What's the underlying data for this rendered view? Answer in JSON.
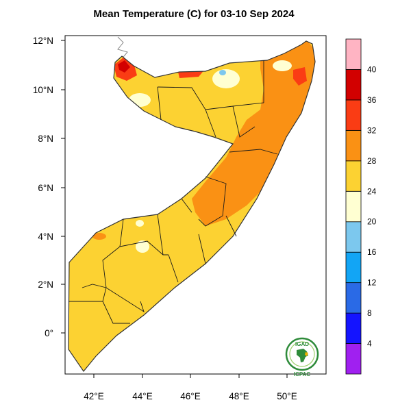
{
  "title": "Mean Temperature (C) for 03-10 Sep 2024",
  "map": {
    "lon_range": [
      41,
      51.5
    ],
    "lat_range": [
      -1.5,
      12.2
    ],
    "lon_ticks": [
      "42°E",
      "44°E",
      "46°E",
      "48°E",
      "50°E"
    ],
    "lat_ticks": [
      "0°",
      "2°N",
      "4°N",
      "6°N",
      "8°N",
      "10°N",
      "12°N"
    ],
    "region": "Somalia"
  },
  "colorbar": {
    "labels": [
      "4",
      "8",
      "12",
      "16",
      "20",
      "24",
      "28",
      "32",
      "36",
      "40"
    ],
    "colors": [
      "#a020f0",
      "#1414ff",
      "#2a6ae6",
      "#12a5f5",
      "#7cc8ee",
      "#ffffd2",
      "#fcd232",
      "#fa9114",
      "#fa3c14",
      "#d20000",
      "#ffb4c3"
    ]
  },
  "logo": {
    "top_text": "IGAD",
    "bottom_text": "ICPAC"
  }
}
